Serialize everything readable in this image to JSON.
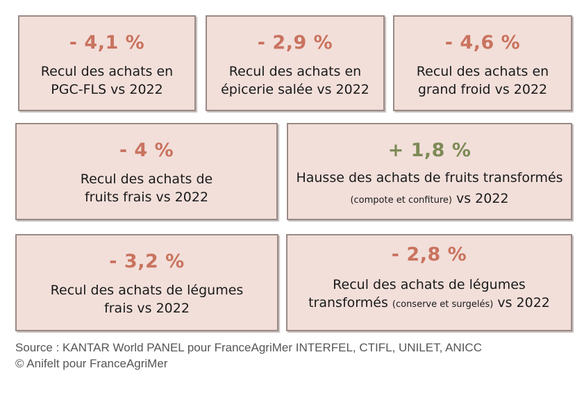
{
  "cards": {
    "pgc": {
      "value": "- 4,1 %",
      "line1": "Recul des achats en",
      "line2": "PGC-FLS vs 2022"
    },
    "epicerie": {
      "value": "- 2,9 %",
      "line1": "Recul des achats en",
      "line2": "épicerie salée vs 2022"
    },
    "froid": {
      "value": "- 4,6 %",
      "line1": "Recul des achats en",
      "line2": "grand froid vs 2022"
    },
    "fruits_frais": {
      "value": "- 4 %",
      "line1": "Recul des achats de",
      "line2": "fruits frais vs 2022"
    },
    "fruits_transformes": {
      "value": "+ 1,8 %",
      "line1": "Hausse des achats de fruits transformés",
      "line2_small": "(compote et confiture)",
      "line2_rest": " vs 2022"
    },
    "legumes_frais": {
      "value": "- 3,2 %",
      "line1": "Recul des achats de légumes",
      "line2": "frais vs 2022"
    },
    "legumes_transformes": {
      "value": "- 2,8 %",
      "line1": "Recul des achats de légumes",
      "line2_main": "transformés ",
      "line2_small": "(conserve et surgelés)",
      "line2_rest": " vs 2022"
    }
  },
  "colors": {
    "card_background": "#f2dfda",
    "card_border": "#9a8a86",
    "negative_value": "#c9735f",
    "positive_value": "#7d8a55"
  },
  "footer": {
    "source": "Source : KANTAR World PANEL pour FranceAgriMer INTERFEL, CTIFL, UNILET, ANICC",
    "copyright": "© Anifelt pour FranceAgriMer"
  }
}
